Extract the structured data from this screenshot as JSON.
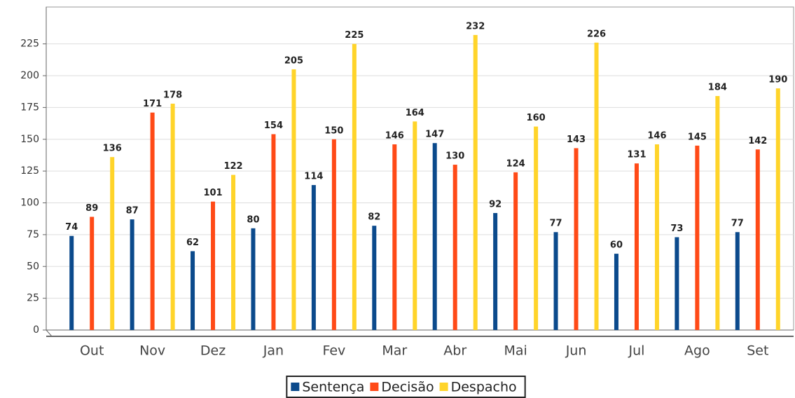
{
  "chart_data": {
    "type": "bar",
    "categories": [
      "Out",
      "Nov",
      "Dez",
      "Jan",
      "Fev",
      "Mar",
      "Abr",
      "Mai",
      "Jun",
      "Jul",
      "Ago",
      "Set"
    ],
    "series": [
      {
        "name": "Sentença",
        "color": "#0b4a8c",
        "values": [
          74,
          87,
          62,
          80,
          114,
          82,
          147,
          92,
          77,
          60,
          73,
          77
        ]
      },
      {
        "name": "Decisão",
        "color": "#ff4a17",
        "values": [
          89,
          171,
          101,
          154,
          150,
          146,
          130,
          124,
          143,
          131,
          145,
          142
        ]
      },
      {
        "name": "Despacho",
        "color": "#ffd42a",
        "values": [
          136,
          178,
          122,
          205,
          225,
          164,
          232,
          160,
          226,
          146,
          184,
          190
        ]
      }
    ],
    "ylim": [
      0,
      254
    ],
    "yticks": [
      0,
      25,
      50,
      75,
      100,
      125,
      150,
      175,
      200,
      225
    ],
    "grid": true,
    "legend": "bottom"
  }
}
